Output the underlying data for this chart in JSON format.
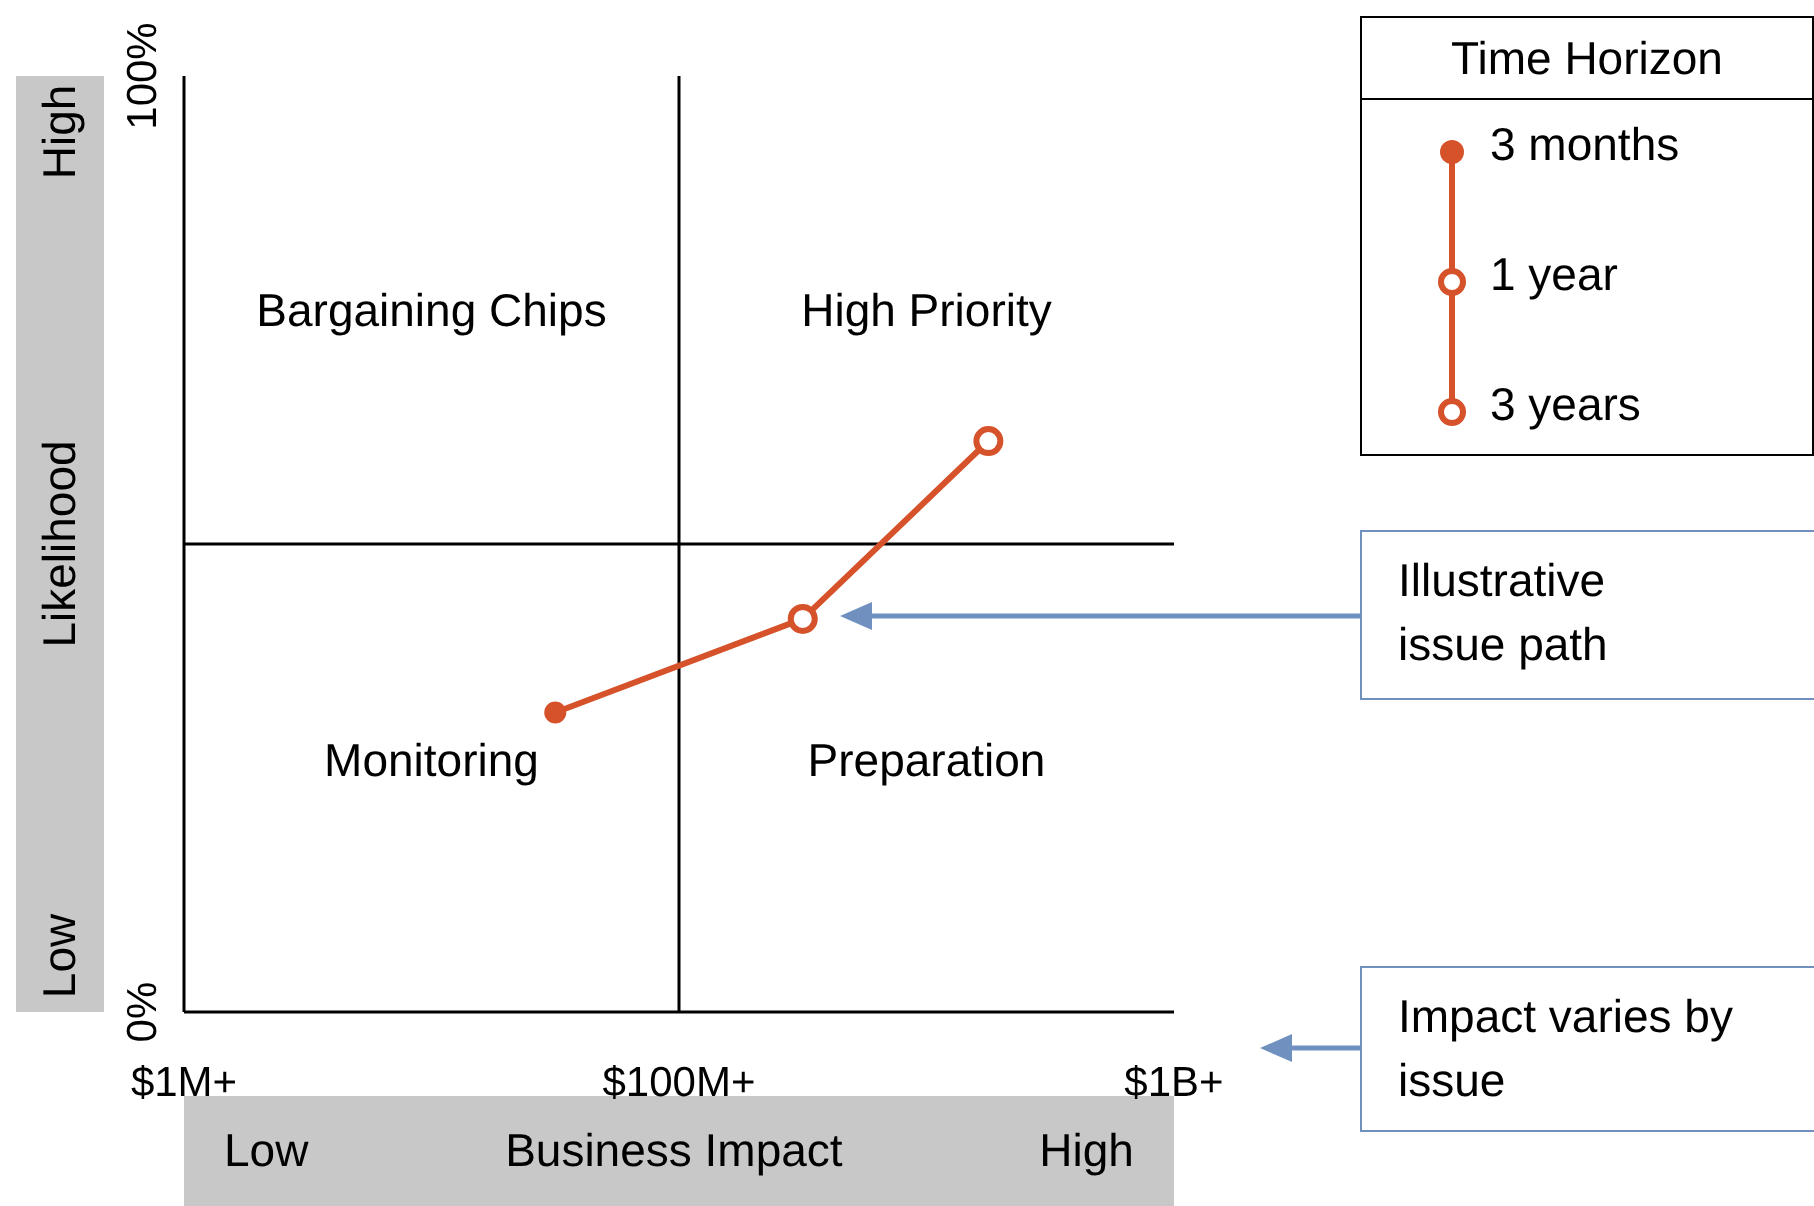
{
  "chart_data": {
    "type": "line",
    "xlabel": "Business Impact",
    "ylabel": "Likelihood",
    "legend_title": "Time Horizon",
    "categories": [
      "$1M+",
      null,
      null,
      null,
      null,
      null,
      null,
      null,
      "$100M+",
      null,
      null,
      null,
      null,
      null,
      null,
      null,
      "$1B+"
    ],
    "series": [
      {
        "color": "#d6522b",
        "values": [
          null,
          null,
          null,
          null,
          null,
          null,
          32,
          null,
          null,
          null,
          42,
          null,
          null,
          61,
          null,
          null,
          null
        ]
      }
    ],
    "ylim": [
      0,
      100
    ],
    "yticks": [
      {
        "value": 0,
        "label": "0%"
      },
      {
        "value": 100,
        "label": "100%"
      }
    ],
    "ref_lines": [
      {
        "axis": "x",
        "value": "$100M+",
        "color": "#000000"
      },
      {
        "axis": "y",
        "value": 50,
        "color": "#000000"
      }
    ],
    "marker": "circle",
    "grid": false,
    "annotations": [
      "Bargaining Chips",
      "High Priority",
      "Monitoring",
      "Preparation",
      "3 months",
      "1 year",
      "3 years",
      "Illustrative issue path",
      "Impact varies by issue",
      "High",
      "Low",
      "Low",
      "High"
    ]
  }
}
